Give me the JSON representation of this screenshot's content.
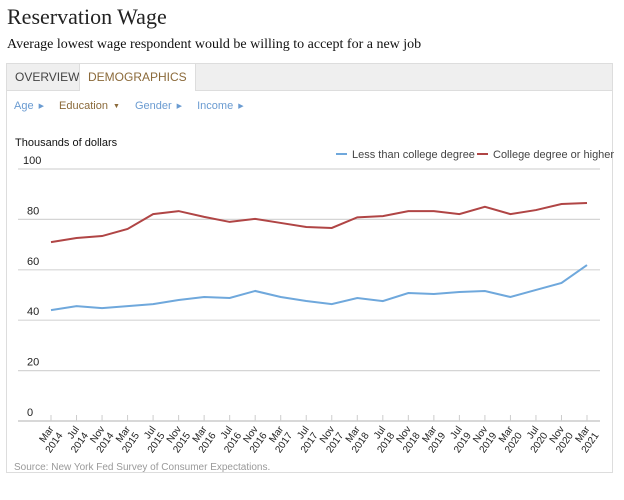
{
  "header": {
    "title": "Reservation Wage",
    "subtitle": "Average lowest wage respondent would be willing to accept for a new job"
  },
  "tabs": [
    {
      "label": "OVERVIEW",
      "active": false
    },
    {
      "label": "DEMOGRAPHICS",
      "active": true
    }
  ],
  "filters": [
    {
      "label": "Age",
      "active": false
    },
    {
      "label": "Education",
      "active": true
    },
    {
      "label": "Gender",
      "active": false
    },
    {
      "label": "Income",
      "active": false
    }
  ],
  "source": "Source: New York Fed Survey of Consumer Expectations.",
  "chart_data": {
    "type": "line",
    "ylabel": "Thousands of dollars",
    "ylim": [
      0,
      100
    ],
    "yticks": [
      "0",
      "20",
      "40",
      "60",
      "80",
      "100"
    ],
    "grid": true,
    "legend": "top-right",
    "categories": [
      [
        "Mar",
        "2014"
      ],
      [
        "Jul",
        "2014"
      ],
      [
        "Nov",
        "2014"
      ],
      [
        "Mar",
        "2015"
      ],
      [
        "Jul",
        "2015"
      ],
      [
        "Nov",
        "2015"
      ],
      [
        "Mar",
        "2016"
      ],
      [
        "Jul",
        "2016"
      ],
      [
        "Nov",
        "2016"
      ],
      [
        "Mar",
        "2017"
      ],
      [
        "Jul",
        "2017"
      ],
      [
        "Nov",
        "2017"
      ],
      [
        "Mar",
        "2018"
      ],
      [
        "Jul",
        "2018"
      ],
      [
        "Nov",
        "2018"
      ],
      [
        "Mar",
        "2019"
      ],
      [
        "Jul",
        "2019"
      ],
      [
        "Nov",
        "2019"
      ],
      [
        "Mar",
        "2020"
      ],
      [
        "Jul",
        "2020"
      ],
      [
        "Nov",
        "2020"
      ],
      [
        "Mar",
        "2021"
      ]
    ],
    "series": [
      {
        "name": "Less than college degree",
        "color": "#6fa8dc",
        "values": [
          44.0,
          45.6,
          44.8,
          45.6,
          46.4,
          48.0,
          49.2,
          48.8,
          51.6,
          49.2,
          47.6,
          46.4,
          48.8,
          47.6,
          50.8,
          50.4,
          51.2,
          51.6,
          49.2,
          52.0,
          54.8,
          61.9
        ]
      },
      {
        "name": "College degree or higher",
        "color": "#b04545",
        "values": [
          71.0,
          72.6,
          73.4,
          76.2,
          82.1,
          83.3,
          81.0,
          79.0,
          80.2,
          78.6,
          77.0,
          76.6,
          80.8,
          81.3,
          83.3,
          83.3,
          82.1,
          85.0,
          82.1,
          83.7,
          86.1,
          86.5
        ]
      }
    ]
  }
}
